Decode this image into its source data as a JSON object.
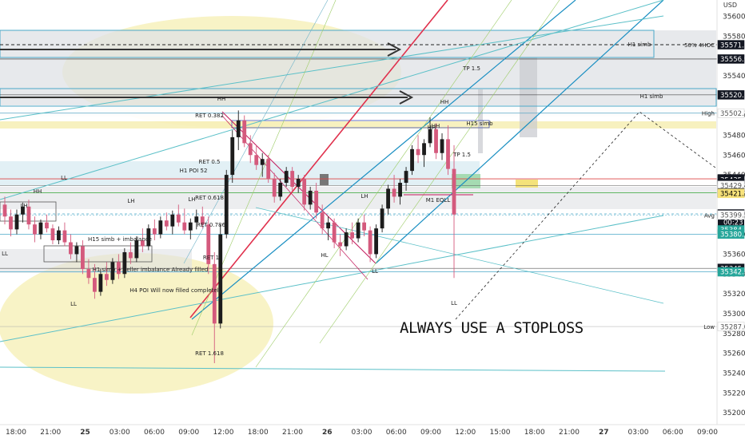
{
  "chart_data": {
    "type": "candlestick",
    "currency": "USD",
    "y_axis": {
      "range": [
        35188,
        35610
      ],
      "tick_labels": [
        "35600.0",
        "35580.0",
        "35540.0",
        "35500.0",
        "35480.0",
        "35460.0",
        "35440.0",
        "35420.0",
        "35380.0",
        "35360.0",
        "35340.0",
        "35320.0",
        "35300.0",
        "35280.0",
        "35260.0",
        "35240.0",
        "35220.0",
        "35200.0"
      ],
      "price_tags": [
        {
          "label": "35571.3",
          "prefix": "50% 4HOC",
          "price": 35571.3,
          "bg": "#131722",
          "fg": "#ffffff"
        },
        {
          "label": "35556.9",
          "prefix": "",
          "price": 35556.9,
          "bg": "#131722",
          "fg": "#ffffff"
        },
        {
          "label": "35520.7",
          "prefix": "",
          "price": 35520.7,
          "bg": "#131722",
          "fg": "#ffffff"
        },
        {
          "label": "35502.3",
          "prefix": "High",
          "price": 35502.3,
          "bg": "#ffffff",
          "fg": "#555555"
        },
        {
          "label": "35436.0",
          "prefix": "",
          "price": 35436.0,
          "bg": "#131722",
          "fg": "#ffffff"
        },
        {
          "label": "35435.2",
          "prefix": "",
          "price": 35435.2,
          "bg": "#131722",
          "fg": "#ffffff"
        },
        {
          "label": "35431.4",
          "prefix": "",
          "price": 35431.4,
          "bg": "#131722",
          "fg": "#ffffff"
        },
        {
          "label": "35429.4",
          "prefix": "",
          "price": 35429.4,
          "bg": "#ffffff",
          "fg": "#555555"
        },
        {
          "label": "35421.9",
          "prefix": "",
          "price": 35421.9,
          "bg": "#131722",
          "fg": "#ffffff"
        },
        {
          "label": "35421.3",
          "prefix": "",
          "price": 35421.3,
          "bg": "#f7e27a",
          "fg": "#000000"
        },
        {
          "label": "35400.6",
          "prefix": "",
          "price": 35400.6,
          "bg": "#131722",
          "fg": "#ffffff",
          "sub": "00:23"
        },
        {
          "label": "35399.5",
          "prefix": "Avg",
          "price": 35399.5,
          "bg": "#ffffff",
          "fg": "#555555"
        },
        {
          "label": "35384.5",
          "prefix": "",
          "price": 35384.5,
          "bg": "#26a69a",
          "fg": "#ffffff"
        },
        {
          "label": "35380.2",
          "prefix": "",
          "price": 35380.2,
          "bg": "#26a69a",
          "fg": "#ffffff"
        },
        {
          "label": "35345.7",
          "prefix": "",
          "price": 35345.7,
          "bg": "#131722",
          "fg": "#ffffff"
        },
        {
          "label": "35342.2",
          "prefix": "",
          "price": 35342.2,
          "bg": "#26a69a",
          "fg": "#ffffff"
        },
        {
          "label": "35287.0",
          "prefix": "Low",
          "price": 35287.0,
          "bg": "#ffffff",
          "fg": "#555555"
        }
      ]
    },
    "x_axis": {
      "tick_labels": [
        "18:00",
        "21:00",
        "25",
        "03:00",
        "06:00",
        "09:00",
        "12:00",
        "18:00",
        "21:00",
        "26",
        "03:00",
        "06:00",
        "09:00",
        "12:00",
        "15:00",
        "18:00",
        "21:00",
        "27",
        "03:00",
        "06:00",
        "09:00"
      ],
      "bold_ticks": [
        "25",
        "26",
        "27"
      ]
    },
    "candles": [
      {
        "o": 35410,
        "h": 35418,
        "l": 35390,
        "c": 35398
      },
      {
        "o": 35398,
        "h": 35405,
        "l": 35378,
        "c": 35385
      },
      {
        "o": 35385,
        "h": 35405,
        "l": 35380,
        "c": 35400
      },
      {
        "o": 35400,
        "h": 35412,
        "l": 35392,
        "c": 35408
      },
      {
        "o": 35408,
        "h": 35415,
        "l": 35385,
        "c": 35390
      },
      {
        "o": 35390,
        "h": 35398,
        "l": 35372,
        "c": 35380
      },
      {
        "o": 35380,
        "h": 35395,
        "l": 35375,
        "c": 35392
      },
      {
        "o": 35392,
        "h": 35400,
        "l": 35382,
        "c": 35386
      },
      {
        "o": 35386,
        "h": 35390,
        "l": 35370,
        "c": 35374
      },
      {
        "o": 35374,
        "h": 35388,
        "l": 35370,
        "c": 35384
      },
      {
        "o": 35384,
        "h": 35392,
        "l": 35368,
        "c": 35372
      },
      {
        "o": 35372,
        "h": 35380,
        "l": 35355,
        "c": 35360
      },
      {
        "o": 35360,
        "h": 35372,
        "l": 35352,
        "c": 35368
      },
      {
        "o": 35368,
        "h": 35374,
        "l": 35340,
        "c": 35345
      },
      {
        "o": 35345,
        "h": 35355,
        "l": 35330,
        "c": 35336
      },
      {
        "o": 35336,
        "h": 35350,
        "l": 35315,
        "c": 35322
      },
      {
        "o": 35322,
        "h": 35345,
        "l": 35318,
        "c": 35340
      },
      {
        "o": 35340,
        "h": 35352,
        "l": 35328,
        "c": 35334
      },
      {
        "o": 35334,
        "h": 35356,
        "l": 35330,
        "c": 35352
      },
      {
        "o": 35352,
        "h": 35360,
        "l": 35335,
        "c": 35340
      },
      {
        "o": 35340,
        "h": 35366,
        "l": 35336,
        "c": 35362
      },
      {
        "o": 35362,
        "h": 35372,
        "l": 35350,
        "c": 35356
      },
      {
        "o": 35356,
        "h": 35378,
        "l": 35352,
        "c": 35374
      },
      {
        "o": 35374,
        "h": 35386,
        "l": 35362,
        "c": 35368
      },
      {
        "o": 35368,
        "h": 35390,
        "l": 35364,
        "c": 35386
      },
      {
        "o": 35386,
        "h": 35395,
        "l": 35374,
        "c": 35380
      },
      {
        "o": 35380,
        "h": 35398,
        "l": 35376,
        "c": 35394
      },
      {
        "o": 35394,
        "h": 35402,
        "l": 35384,
        "c": 35388
      },
      {
        "o": 35388,
        "h": 35404,
        "l": 35380,
        "c": 35400
      },
      {
        "o": 35400,
        "h": 35410,
        "l": 35388,
        "c": 35392
      },
      {
        "o": 35392,
        "h": 35406,
        "l": 35380,
        "c": 35384
      },
      {
        "o": 35384,
        "h": 35396,
        "l": 35375,
        "c": 35392
      },
      {
        "o": 35392,
        "h": 35405,
        "l": 35385,
        "c": 35398
      },
      {
        "o": 35398,
        "h": 35408,
        "l": 35386,
        "c": 35390
      },
      {
        "o": 35390,
        "h": 35398,
        "l": 35340,
        "c": 35350
      },
      {
        "o": 35350,
        "h": 35362,
        "l": 35250,
        "c": 35290
      },
      {
        "o": 35290,
        "h": 35390,
        "l": 35285,
        "c": 35380
      },
      {
        "o": 35380,
        "h": 35445,
        "l": 35376,
        "c": 35440
      },
      {
        "o": 35440,
        "h": 35485,
        "l": 35432,
        "c": 35478
      },
      {
        "o": 35478,
        "h": 35505,
        "l": 35465,
        "c": 35495
      },
      {
        "o": 35495,
        "h": 35500,
        "l": 35468,
        "c": 35472
      },
      {
        "o": 35472,
        "h": 35480,
        "l": 35452,
        "c": 35460
      },
      {
        "o": 35460,
        "h": 35470,
        "l": 35445,
        "c": 35450
      },
      {
        "o": 35450,
        "h": 35462,
        "l": 35438,
        "c": 35456
      },
      {
        "o": 35456,
        "h": 35460,
        "l": 35432,
        "c": 35436
      },
      {
        "o": 35436,
        "h": 35442,
        "l": 35412,
        "c": 35418
      },
      {
        "o": 35418,
        "h": 35436,
        "l": 35414,
        "c": 35432
      },
      {
        "o": 35432,
        "h": 35448,
        "l": 35428,
        "c": 35444
      },
      {
        "o": 35444,
        "h": 35448,
        "l": 35424,
        "c": 35428
      },
      {
        "o": 35428,
        "h": 35440,
        "l": 35422,
        "c": 35436
      },
      {
        "o": 35436,
        "h": 35440,
        "l": 35404,
        "c": 35410
      },
      {
        "o": 35410,
        "h": 35428,
        "l": 35405,
        "c": 35424
      },
      {
        "o": 35424,
        "h": 35432,
        "l": 35396,
        "c": 35402
      },
      {
        "o": 35402,
        "h": 35410,
        "l": 35380,
        "c": 35386
      },
      {
        "o": 35386,
        "h": 35398,
        "l": 35374,
        "c": 35392
      },
      {
        "o": 35392,
        "h": 35396,
        "l": 35366,
        "c": 35372
      },
      {
        "o": 35372,
        "h": 35380,
        "l": 35358,
        "c": 35368
      },
      {
        "o": 35368,
        "h": 35386,
        "l": 35364,
        "c": 35382
      },
      {
        "o": 35382,
        "h": 35392,
        "l": 35370,
        "c": 35376
      },
      {
        "o": 35376,
        "h": 35396,
        "l": 35372,
        "c": 35392
      },
      {
        "o": 35392,
        "h": 35400,
        "l": 35378,
        "c": 35384
      },
      {
        "o": 35384,
        "h": 35388,
        "l": 35352,
        "c": 35360
      },
      {
        "o": 35360,
        "h": 35390,
        "l": 35356,
        "c": 35386
      },
      {
        "o": 35386,
        "h": 35410,
        "l": 35382,
        "c": 35406
      },
      {
        "o": 35406,
        "h": 35430,
        "l": 35400,
        "c": 35426
      },
      {
        "o": 35426,
        "h": 35440,
        "l": 35412,
        "c": 35418
      },
      {
        "o": 35418,
        "h": 35436,
        "l": 35410,
        "c": 35432
      },
      {
        "o": 35432,
        "h": 35448,
        "l": 35424,
        "c": 35444
      },
      {
        "o": 35444,
        "h": 35470,
        "l": 35440,
        "c": 35466
      },
      {
        "o": 35466,
        "h": 35480,
        "l": 35452,
        "c": 35460
      },
      {
        "o": 35460,
        "h": 35476,
        "l": 35448,
        "c": 35472
      },
      {
        "o": 35472,
        "h": 35498,
        "l": 35468,
        "c": 35486
      },
      {
        "o": 35486,
        "h": 35492,
        "l": 35456,
        "c": 35462
      },
      {
        "o": 35462,
        "h": 35482,
        "l": 35455,
        "c": 35476
      },
      {
        "o": 35476,
        "h": 35490,
        "l": 35440,
        "c": 35446
      },
      {
        "o": 35446,
        "h": 35470,
        "l": 35336,
        "c": 35400
      }
    ],
    "annotations": [
      "HH",
      "LH",
      "LL",
      "LL",
      "LL",
      "HH",
      "H1 POI 52",
      "H15 simb + imbalance",
      "H1 simb + seller imbalance Already filled",
      "H4 POI Will now filled completely",
      "HH",
      "LH",
      "HL",
      "LL",
      "LH",
      "HH",
      "HH",
      "M1 EQLL",
      "H15 simb",
      "LH",
      "LL",
      "H1 simb",
      "H1 simb",
      "RET 0.382",
      "RET 0.5",
      "RET 0.618",
      "RET 0.786",
      "RET 1",
      "RET 1.618",
      "TP 1.5",
      "TP 1.5"
    ],
    "note": "ALWAYS USE A STOPLOSS"
  }
}
